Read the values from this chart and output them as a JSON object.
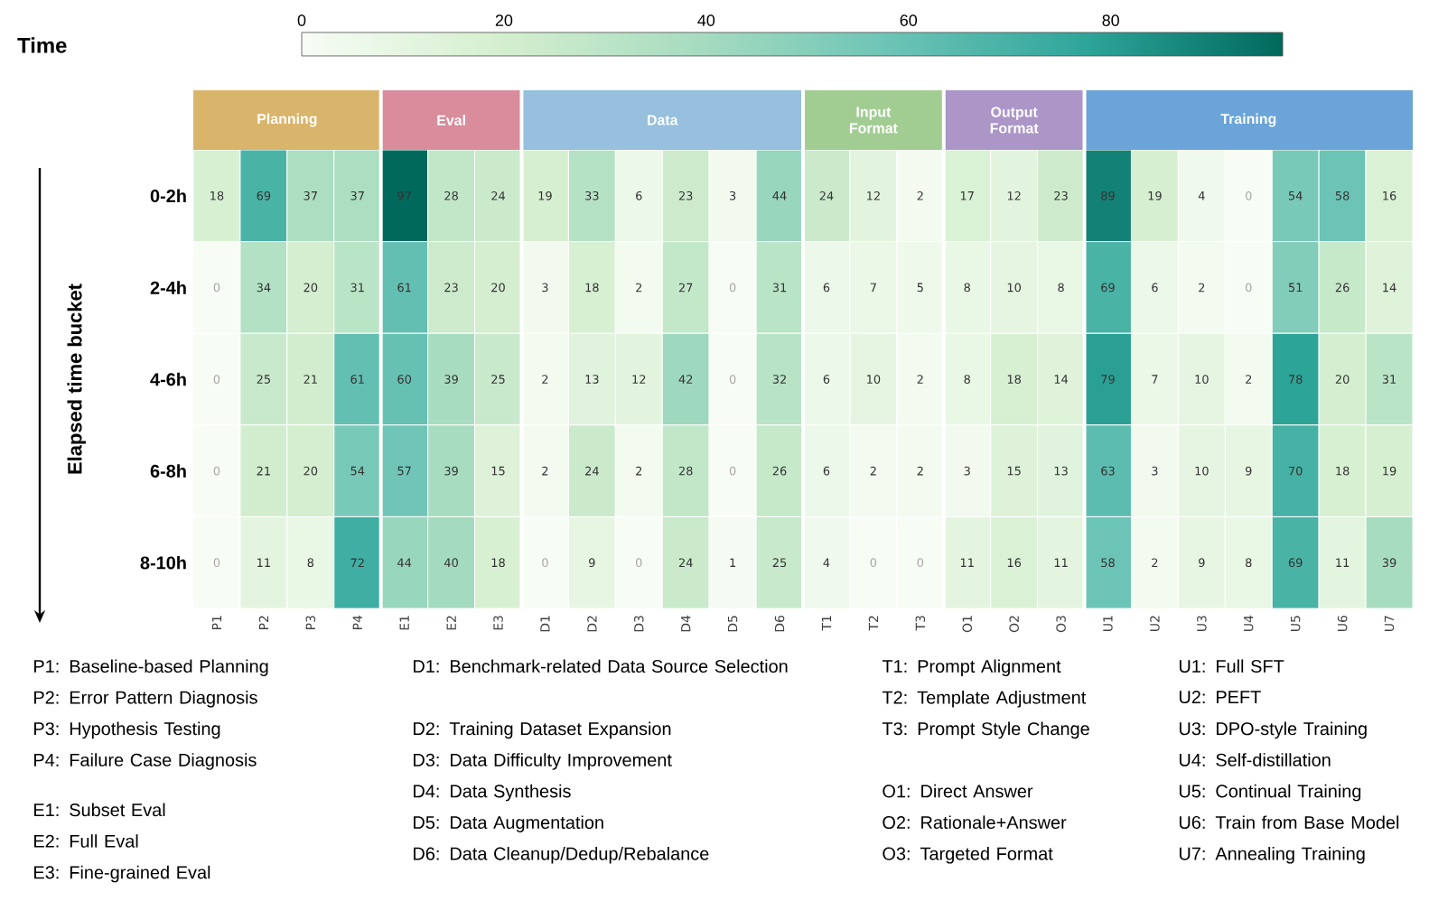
{
  "chart_data": {
    "type": "heatmap",
    "clabel": "Time",
    "ylabel": "Elapsed time bucket",
    "categories": [
      "P1",
      "P2",
      "P3",
      "P4",
      "E1",
      "E2",
      "E3",
      "D1",
      "D2",
      "D3",
      "D4",
      "D5",
      "D6",
      "T1",
      "T2",
      "T3",
      "O1",
      "O2",
      "O3",
      "U1",
      "U2",
      "U3",
      "U4",
      "U5",
      "U6",
      "U7"
    ],
    "y_categories": [
      "0-2h",
      "2-4h",
      "4-6h",
      "6-8h",
      "8-10h"
    ],
    "cells": [
      [
        18,
        69,
        37,
        37,
        97,
        28,
        24,
        19,
        33,
        6,
        23,
        3,
        44,
        24,
        12,
        2,
        17,
        12,
        23,
        89,
        19,
        4,
        0,
        54,
        58,
        16
      ],
      [
        0,
        34,
        20,
        31,
        61,
        23,
        20,
        3,
        18,
        2,
        27,
        0,
        31,
        6,
        7,
        5,
        8,
        10,
        8,
        69,
        6,
        2,
        0,
        51,
        26,
        14
      ],
      [
        0,
        25,
        21,
        61,
        60,
        39,
        25,
        2,
        13,
        12,
        42,
        0,
        32,
        6,
        10,
        2,
        8,
        18,
        14,
        79,
        7,
        10,
        2,
        78,
        20,
        31
      ],
      [
        0,
        21,
        20,
        54,
        57,
        39,
        15,
        2,
        24,
        2,
        28,
        0,
        26,
        6,
        2,
        2,
        3,
        15,
        13,
        63,
        3,
        10,
        9,
        70,
        18,
        19
      ],
      [
        0,
        11,
        8,
        72,
        44,
        40,
        18,
        0,
        9,
        0,
        24,
        1,
        25,
        4,
        0,
        0,
        11,
        16,
        11,
        58,
        2,
        9,
        8,
        69,
        11,
        39
      ]
    ],
    "data_labels": true,
    "clim": [
      0,
      97
    ],
    "cticks": [
      0,
      20,
      40,
      60,
      80
    ],
    "annotations": [
      "Planning",
      "Eval",
      "Data",
      "Input Format",
      "Output Format",
      "Training",
      "P1: Baseline-based Planning",
      "P2: Error Pattern Diagnosis",
      "P3: Hypothesis Testing",
      "P4: Failure Case Diagnosis",
      "E1: Subset Eval",
      "E2: Full Eval",
      "E3: Fine-grained Eval",
      "D1: Benchmark-related Data Source Selection",
      "D2: Training Dataset Expansion",
      "D3: Data Difficulty Improvement",
      "D4: Data Synthesis",
      "D5: Data Augmentation",
      "D6: Data Cleanup/Dedup/Rebalance",
      "T1: Prompt Alignment",
      "T2: Template Adjustment",
      "T3: Prompt Style Change",
      "O1: Direct Answer",
      "O2: Rationale+Answer",
      "O3: Targeted Format",
      "U1: Full SFT",
      "U2: PEFT",
      "U3: DPO-style Training",
      "U4: Self-distillation",
      "U5: Continual Training",
      "U6: Train from Base Model",
      "U7: Annealing Training"
    ]
  }
}
